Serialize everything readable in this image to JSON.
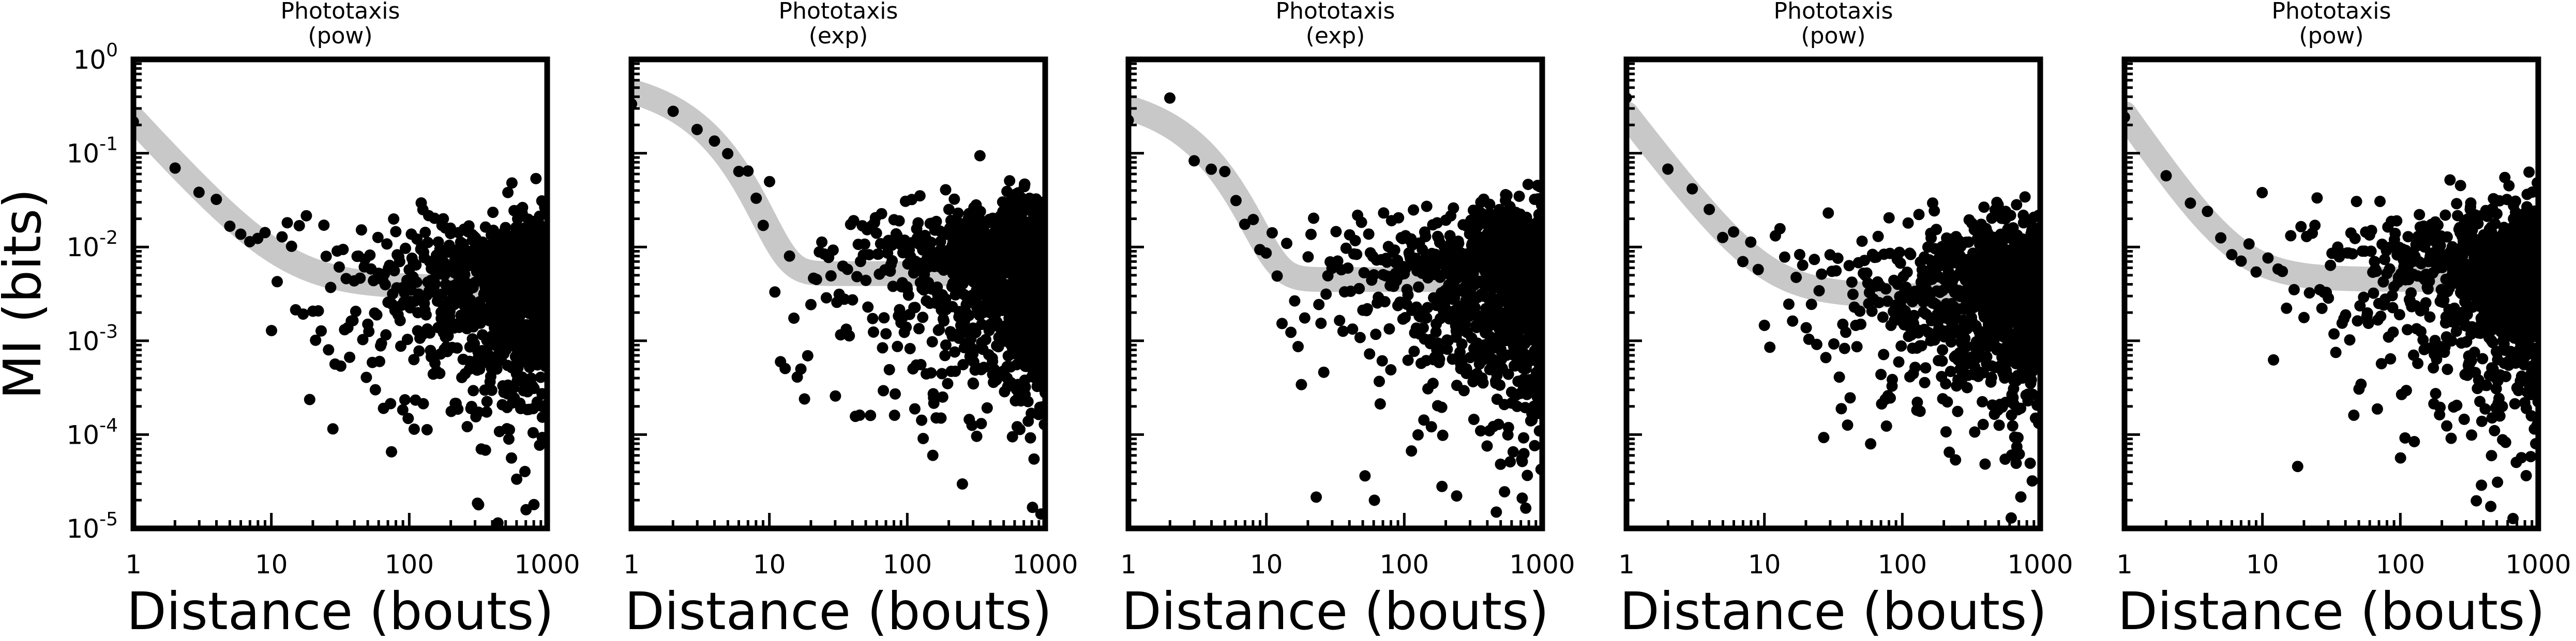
{
  "chart_data": [
    {
      "type": "scatter",
      "title": "Phototaxis\n(pow)",
      "xlabel": "Distance (bouts)",
      "ylabel": "MI (bits)",
      "xscale": "log",
      "yscale": "log",
      "xlim": [
        1,
        1000
      ],
      "ylim": [
        1e-05,
        1
      ],
      "xticks": [
        "1",
        "10",
        "100",
        "1000"
      ],
      "yticks": [
        "10^0",
        "10^-1",
        "10^-2",
        "10^-3",
        "10^-4",
        "10^-5"
      ],
      "fit_model": "pow",
      "fit": {
        "a": 0.23,
        "b": 1.6,
        "c": 0.0037
      },
      "seed": 11,
      "scatter_summary": {
        "level": 0.004,
        "spread_low": 2.2,
        "spread_high": 2.4
      }
    },
    {
      "type": "scatter",
      "title": "Phototaxis\n(exp)",
      "xlabel": "Distance (bouts)",
      "ylabel": "",
      "xscale": "log",
      "yscale": "log",
      "xlim": [
        1,
        1000
      ],
      "ylim": [
        1e-05,
        1
      ],
      "xticks": [
        "1",
        "10",
        "100",
        "1000"
      ],
      "yticks": [],
      "fit_model": "exp",
      "fit": {
        "a": 0.45,
        "b": 0.42,
        "c": 0.0052
      },
      "seed": 23,
      "scatter_summary": {
        "level": 0.006,
        "spread_low": 2.3,
        "spread_high": 2.2
      }
    },
    {
      "type": "scatter",
      "title": "Phototaxis\n(exp)",
      "xlabel": "Distance (bouts)",
      "ylabel": "",
      "xscale": "log",
      "yscale": "log",
      "xlim": [
        1,
        1000
      ],
      "ylim": [
        1e-05,
        1
      ],
      "xticks": [
        "1",
        "10",
        "100",
        "1000"
      ],
      "yticks": [],
      "fit_model": "exp",
      "fit": {
        "a": 0.3,
        "b": 0.45,
        "c": 0.0045
      },
      "seed": 37,
      "scatter_summary": {
        "level": 0.005,
        "spread_low": 2.4,
        "spread_high": 2.2
      }
    },
    {
      "type": "scatter",
      "title": "Phototaxis\n(pow)",
      "xlabel": "Distance (bouts)",
      "ylabel": "",
      "xscale": "log",
      "yscale": "log",
      "xlim": [
        1,
        1000
      ],
      "ylim": [
        1e-05,
        1
      ],
      "xticks": [
        "1",
        "10",
        "100",
        "1000"
      ],
      "yticks": [],
      "fit_model": "pow",
      "fit": {
        "a": 0.26,
        "b": 1.9,
        "c": 0.003
      },
      "seed": 53,
      "scatter_summary": {
        "level": 0.004,
        "spread_low": 2.3,
        "spread_high": 2.4
      }
    },
    {
      "type": "scatter",
      "title": "Phototaxis\n(pow)",
      "xlabel": "Distance (bouts)",
      "ylabel": "",
      "xscale": "log",
      "yscale": "log",
      "xlim": [
        1,
        1000
      ],
      "ylim": [
        1e-05,
        1
      ],
      "xticks": [
        "1",
        "10",
        "100",
        "1000"
      ],
      "yticks": [],
      "fit_model": "pow",
      "fit": {
        "a": 0.26,
        "b": 2.1,
        "c": 0.0045
      },
      "seed": 71,
      "scatter_summary": {
        "level": 0.005,
        "spread_low": 2.4,
        "spread_high": 2.2
      }
    }
  ]
}
